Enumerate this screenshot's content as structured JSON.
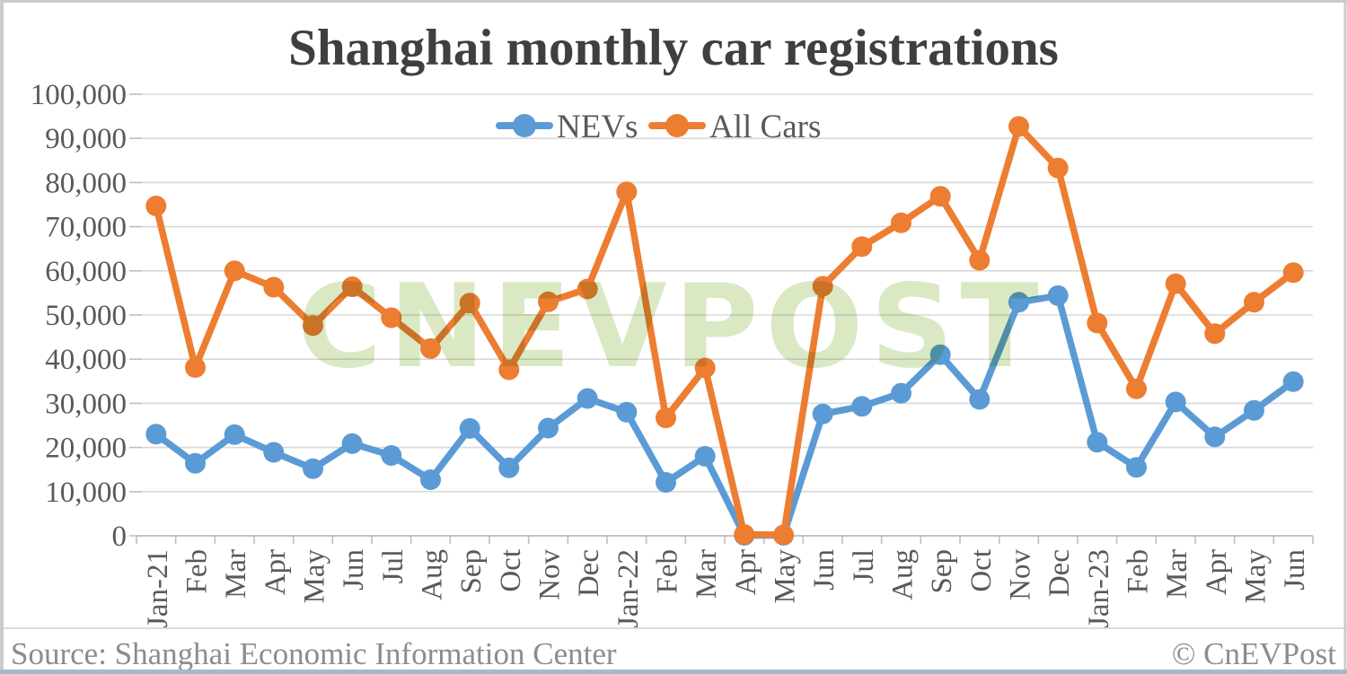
{
  "title": "Shanghai monthly car registrations",
  "source": "Source: Shanghai Economic Information Center",
  "copyright": "© CnEVPost",
  "watermark": "CNEVPOST",
  "colors": {
    "nev": "#5B9BD5",
    "all_cars": "#ED7D31",
    "grid": "#D9D9D9",
    "axis": "#BFBFBF",
    "title_text": "#3F3F3F",
    "tick_text": "#595959",
    "footer_text": "#8C8C8C",
    "watermark": "#BBD693",
    "border": "#CBCBCB",
    "bottom_bar": "#A4BACC"
  },
  "chart_data": {
    "type": "line",
    "title": "Shanghai monthly car registrations",
    "categories": [
      "Jan-21",
      "Feb",
      "Mar",
      "Apr",
      "May",
      "Jun",
      "Jul",
      "Aug",
      "Sep",
      "Oct",
      "Nov",
      "Dec",
      "Jan-22",
      "Feb",
      "Mar",
      "Apr",
      "May",
      "Jun",
      "Jul",
      "Aug",
      "Sep",
      "Oct",
      "Nov",
      "Dec",
      "Jan-23",
      "Feb",
      "Mar",
      "Apr",
      "May",
      "Jun"
    ],
    "series": [
      {
        "name": "NEVs",
        "color": "#5B9BD5",
        "values": [
          23000,
          16400,
          22900,
          18900,
          15200,
          20900,
          18200,
          12700,
          24300,
          15400,
          24400,
          31100,
          28000,
          12100,
          18000,
          100,
          100,
          27600,
          29300,
          32300,
          41000,
          30900,
          52900,
          54400,
          21200,
          15500,
          30300,
          22400,
          28400,
          34900
        ]
      },
      {
        "name": "All Cars",
        "color": "#ED7D31",
        "values": [
          74700,
          38100,
          60000,
          56300,
          47600,
          56400,
          49400,
          42400,
          52700,
          37600,
          53000,
          55900,
          77900,
          26700,
          38000,
          300,
          200,
          56500,
          65500,
          70900,
          76900,
          62400,
          92700,
          83300,
          48200,
          33300,
          57100,
          45800,
          52900,
          59600
        ]
      }
    ],
    "xlabel": "",
    "ylabel": "",
    "ylim": [
      0,
      100000
    ],
    "ytick_interval": 10000,
    "ytick_labels": [
      "0",
      "10,000",
      "20,000",
      "30,000",
      "40,000",
      "50,000",
      "60,000",
      "70,000",
      "80,000",
      "90,000",
      "100,000"
    ],
    "grid": true,
    "legend_position": "top-center"
  }
}
